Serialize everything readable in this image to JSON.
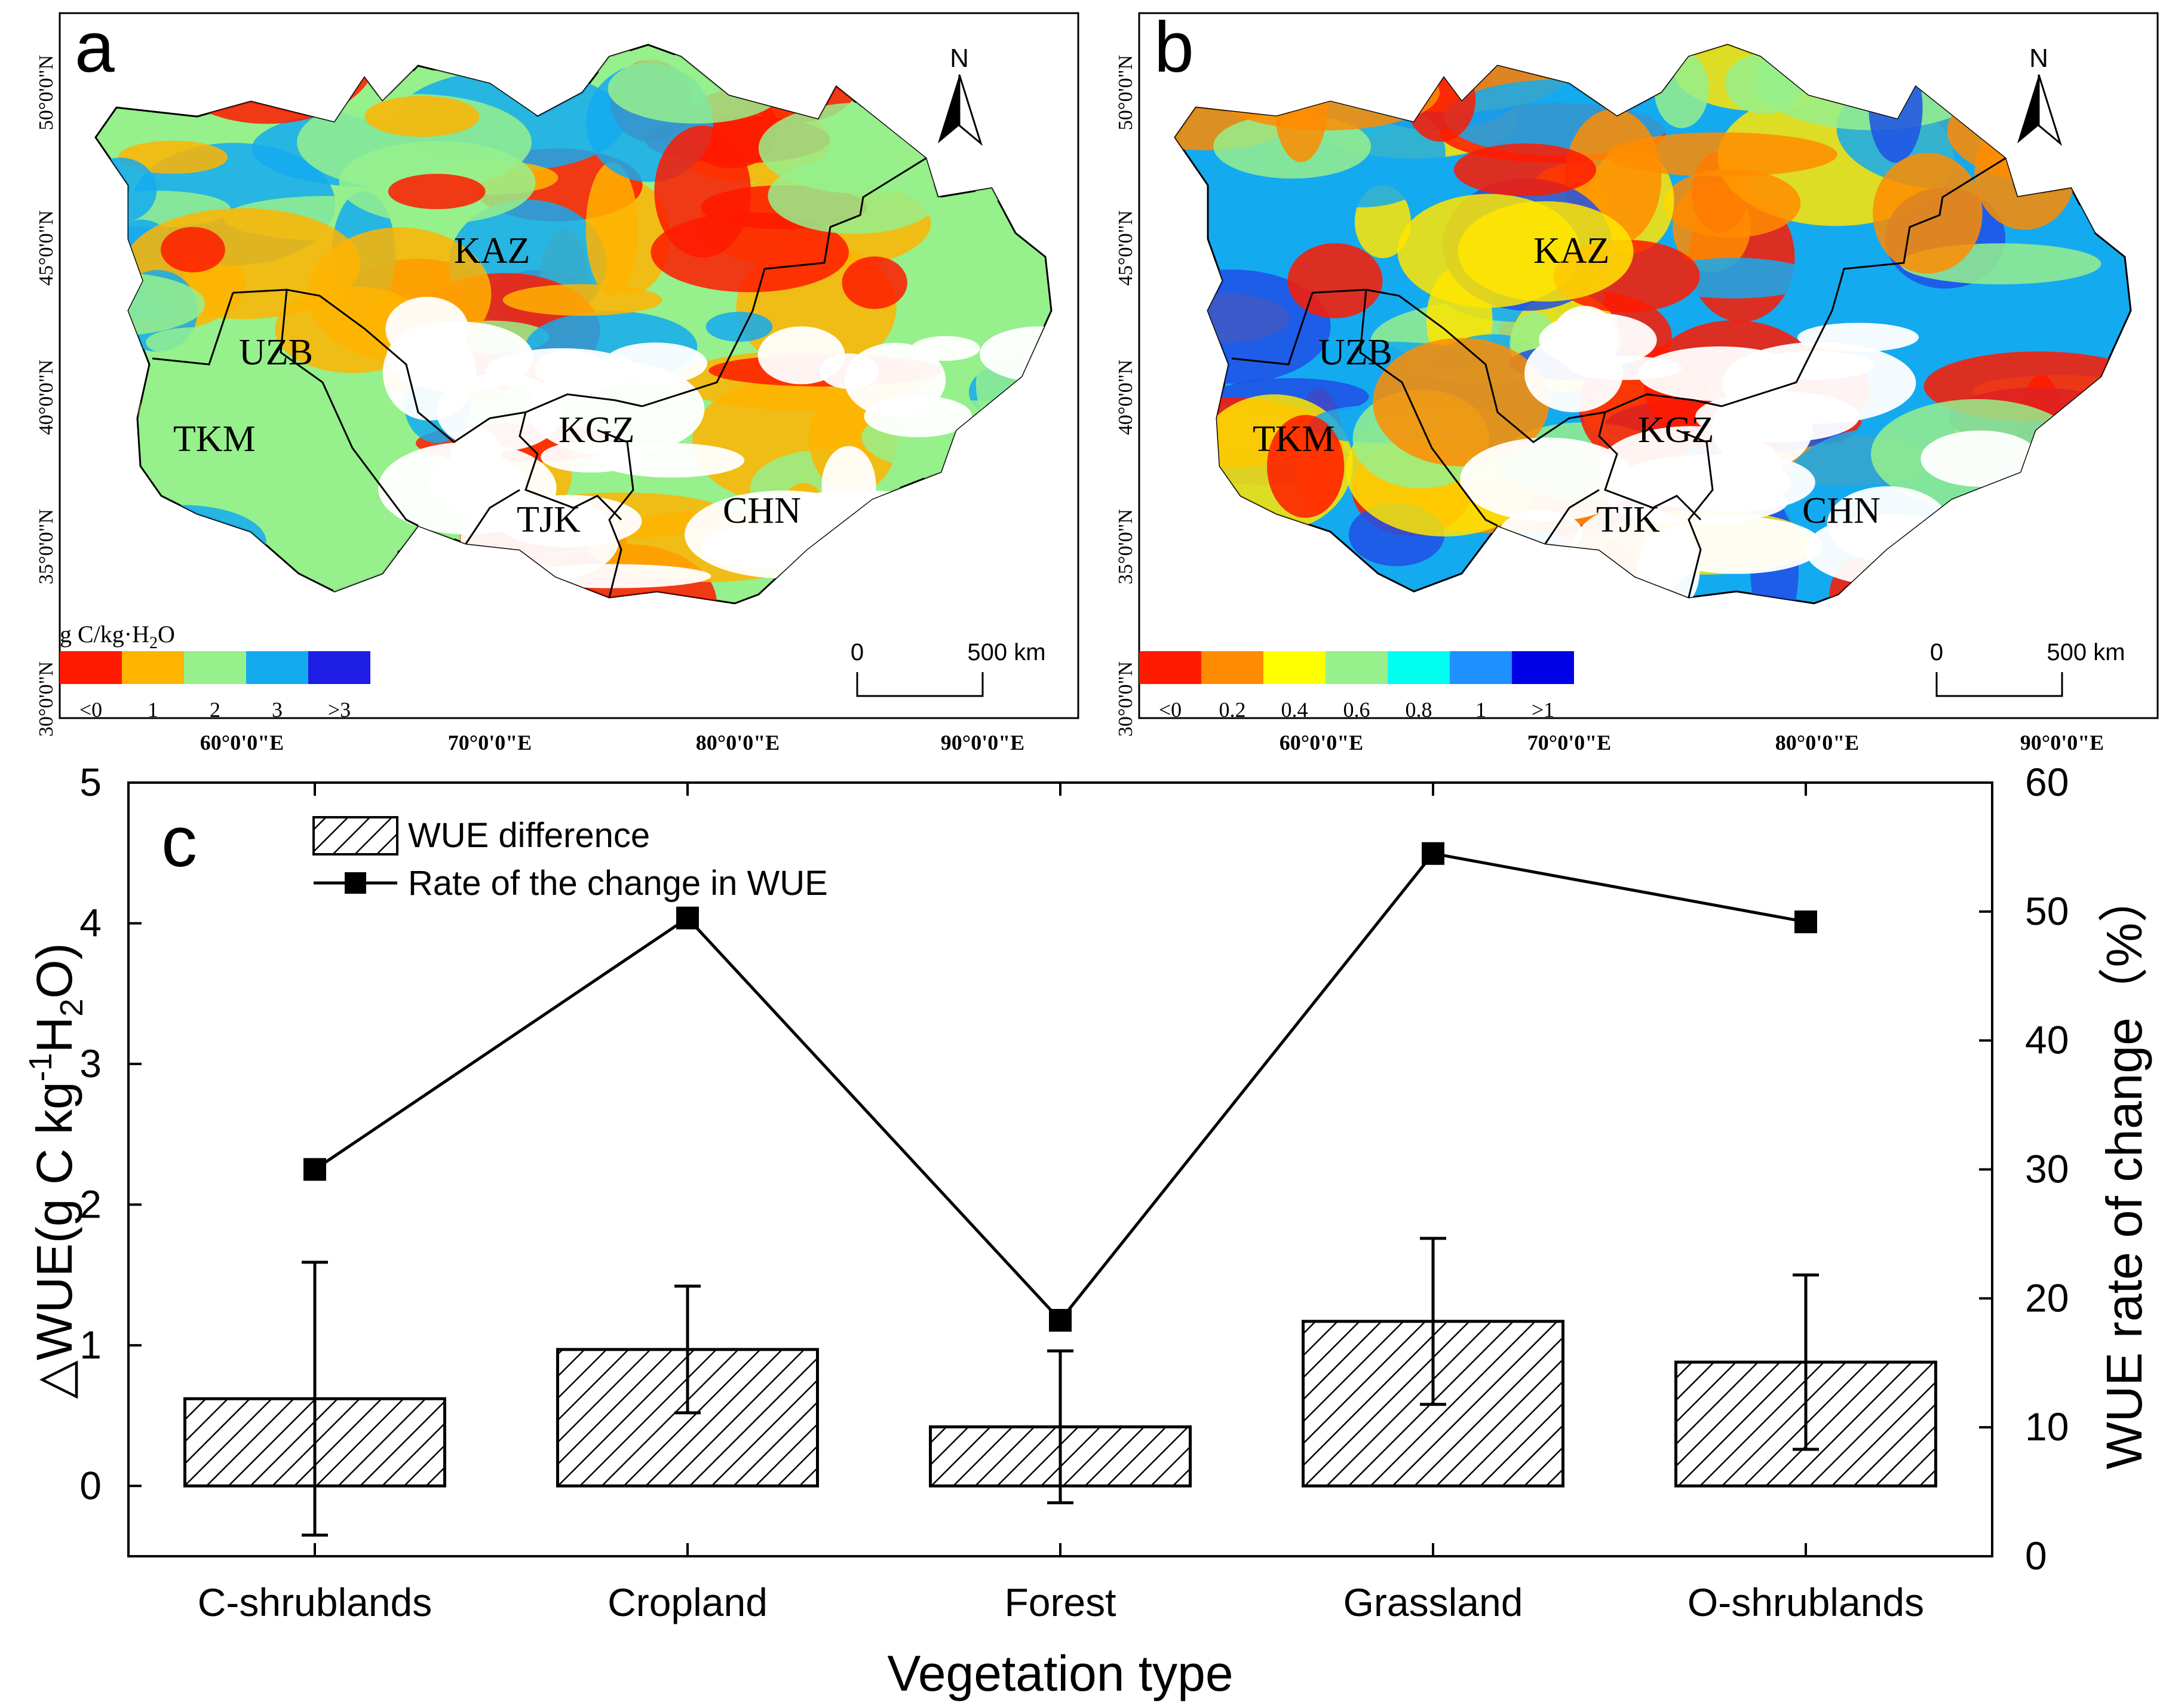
{
  "panels": {
    "a": {
      "letter": "a",
      "legend_title": "g C/kg·H",
      "legend_title_sub": "2",
      "legend_title_end": "O",
      "legend_colors": [
        "#ff1a00",
        "#ffb400",
        "#96f08c",
        "#14aaf0",
        "#1e1ee6"
      ],
      "legend_ticks": [
        "<0",
        "1",
        "2",
        "3",
        ">3"
      ],
      "map_colors": [
        "#ffb400",
        "#96f08c",
        "#14aaf0",
        "#ff1a00"
      ]
    },
    "b": {
      "letter": "b",
      "legend_colors": [
        "#ff1a00",
        "#ff8c00",
        "#ffff00",
        "#96f08c",
        "#00ffee",
        "#1e90ff",
        "#0000e6"
      ],
      "legend_ticks": [
        "<0",
        "0.2",
        "0.4",
        "0.6",
        "0.8",
        "1",
        ">1"
      ],
      "map_colors": [
        "#14aaf0",
        "#1e50e6",
        "#96f08c",
        "#ffe600",
        "#ff8c00",
        "#ff1a00"
      ]
    },
    "lat_labels": [
      "50°0'0\"N",
      "45°0'0\"N",
      "40°0'0\"N",
      "35°0'0\"N",
      "30°0'0\"N"
    ],
    "lon_labels_a": [
      "60°0'0\"E",
      "70°0'0\"E",
      "80°0'0\"E",
      "90°0'0\"E"
    ],
    "lon_labels_b": [
      "60°0'0\"E",
      "70°0'0\"E",
      "80°0'0\"E",
      "90°0'0\"E"
    ],
    "north": "N",
    "scale_start": "0",
    "scale_end": "500 km",
    "countries": [
      "KAZ",
      "UZB",
      "TKM",
      "KGZ",
      "TJK",
      "CHN"
    ]
  },
  "chart_data": {
    "type": "bar",
    "panel_letter": "c",
    "categories": [
      "C-shrublands",
      "Cropland",
      "Forest",
      "Grassland",
      "O-shrublands"
    ],
    "series": [
      {
        "name": "WUE difference",
        "axis": "left",
        "values": [
          0.62,
          0.97,
          0.42,
          1.17,
          0.88
        ],
        "error": [
          0.97,
          0.45,
          0.54,
          0.59,
          0.62
        ]
      },
      {
        "name": "Rate of the change in WUE",
        "axis": "right",
        "type": "line",
        "values": [
          30.0,
          49.5,
          18.3,
          54.5,
          49.2
        ]
      }
    ],
    "xlabel": "Vegetation type",
    "ylabel_parts": [
      "△WUE(g C kg",
      "-1",
      "H",
      "2",
      "O)"
    ],
    "y2label": "WUE rate of change（%）",
    "ylim": [
      -0.5,
      5
    ],
    "y2lim": [
      0,
      60
    ],
    "yticks": [
      0,
      1,
      2,
      3,
      4,
      5
    ],
    "y2ticks": [
      0,
      10,
      20,
      30,
      40,
      50,
      60
    ]
  }
}
